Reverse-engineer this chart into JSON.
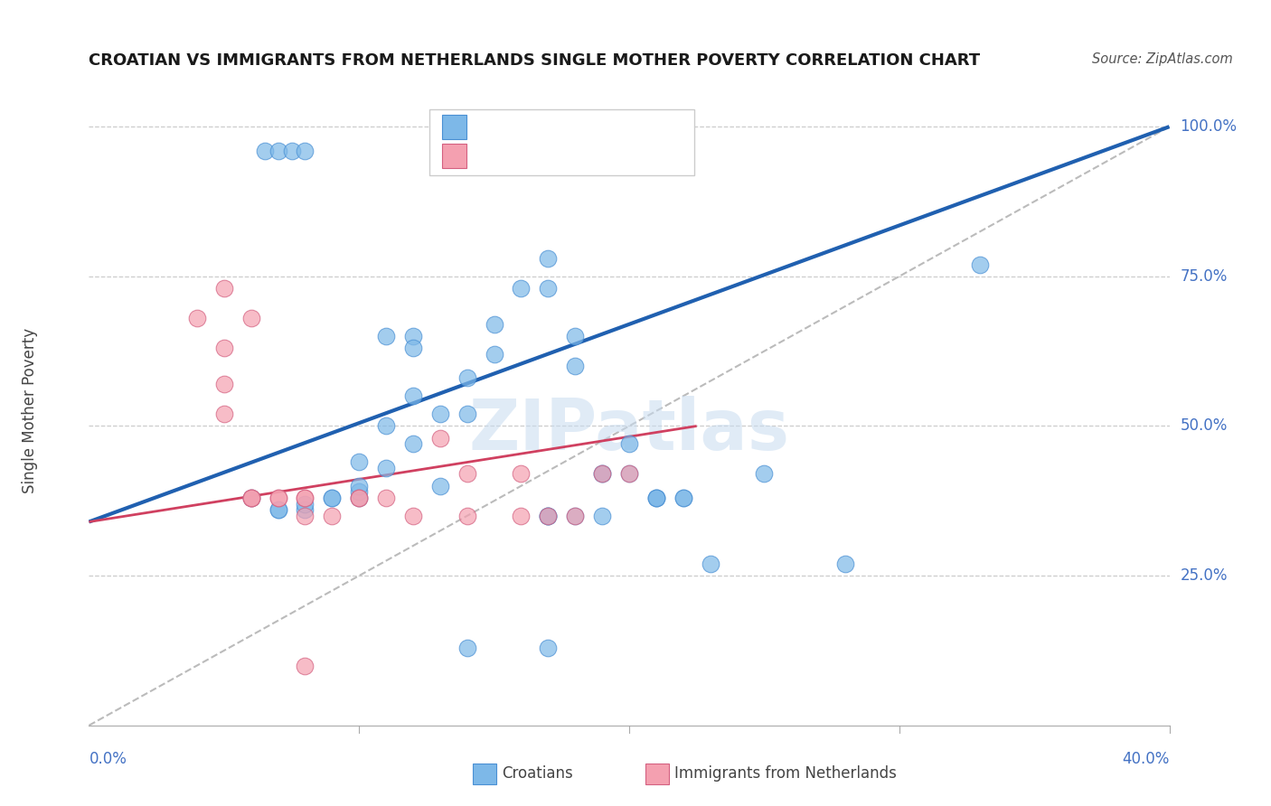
{
  "title": "CROATIAN VS IMMIGRANTS FROM NETHERLANDS SINGLE MOTHER POVERTY CORRELATION CHART",
  "source": "Source: ZipAtlas.com",
  "ylabel": "Single Mother Poverty",
  "blue_color": "#7DB8E8",
  "pink_color": "#F4A0B0",
  "blue_edge_color": "#4A90D4",
  "pink_edge_color": "#D46080",
  "blue_line_color": "#2060B0",
  "pink_line_color": "#D04060",
  "grey_line_color": "#BBBBBB",
  "axis_label_color": "#4472C4",
  "title_color": "#1A1A1A",
  "source_color": "#555555",
  "blue_scatter_x": [
    0.06,
    0.07,
    0.07,
    0.08,
    0.08,
    0.09,
    0.09,
    0.1,
    0.1,
    0.1,
    0.1,
    0.11,
    0.11,
    0.11,
    0.12,
    0.12,
    0.12,
    0.12,
    0.13,
    0.13,
    0.14,
    0.14,
    0.15,
    0.15,
    0.16,
    0.17,
    0.17,
    0.18,
    0.18,
    0.19,
    0.2,
    0.2,
    0.21,
    0.21,
    0.22,
    0.22,
    0.21,
    0.17,
    0.17,
    0.17,
    0.18,
    0.19,
    0.19,
    0.25,
    0.28,
    0.33,
    0.065,
    0.07,
    0.075,
    0.08,
    0.14,
    0.17,
    0.23
  ],
  "blue_scatter_y": [
    0.38,
    0.36,
    0.36,
    0.36,
    0.37,
    0.38,
    0.38,
    0.38,
    0.39,
    0.4,
    0.44,
    0.43,
    0.5,
    0.65,
    0.47,
    0.65,
    0.55,
    0.63,
    0.4,
    0.52,
    0.52,
    0.58,
    0.62,
    0.67,
    0.73,
    0.73,
    0.78,
    0.65,
    0.6,
    0.42,
    0.42,
    0.47,
    0.38,
    0.38,
    0.38,
    0.38,
    0.38,
    0.35,
    0.35,
    0.35,
    0.35,
    0.35,
    0.42,
    0.42,
    0.27,
    0.77,
    0.96,
    0.96,
    0.96,
    0.96,
    0.13,
    0.13,
    0.27
  ],
  "pink_scatter_x": [
    0.04,
    0.05,
    0.05,
    0.05,
    0.06,
    0.06,
    0.06,
    0.07,
    0.07,
    0.08,
    0.08,
    0.08,
    0.09,
    0.1,
    0.1,
    0.11,
    0.12,
    0.14,
    0.14,
    0.16,
    0.16,
    0.17,
    0.18,
    0.19,
    0.2,
    0.05,
    0.06,
    0.13,
    0.08
  ],
  "pink_scatter_y": [
    0.68,
    0.63,
    0.57,
    0.52,
    0.38,
    0.38,
    0.38,
    0.38,
    0.38,
    0.38,
    0.38,
    0.35,
    0.35,
    0.38,
    0.38,
    0.38,
    0.35,
    0.35,
    0.42,
    0.35,
    0.42,
    0.35,
    0.35,
    0.42,
    0.42,
    0.73,
    0.68,
    0.48,
    0.1
  ],
  "blue_line_x": [
    0.0,
    0.4
  ],
  "blue_line_y": [
    0.34,
    1.0
  ],
  "pink_line_x": [
    0.0,
    0.225
  ],
  "pink_line_y": [
    0.34,
    0.5
  ],
  "grey_line_x": [
    0.0,
    0.4
  ],
  "grey_line_y": [
    0.0,
    1.0
  ],
  "xlim": [
    0.0,
    0.4
  ],
  "ylim": [
    0.0,
    1.05
  ],
  "ytick_vals": [
    0.25,
    0.5,
    0.75,
    1.0
  ],
  "ytick_labels": [
    "25.0%",
    "50.0%",
    "75.0%",
    "100.0%"
  ]
}
